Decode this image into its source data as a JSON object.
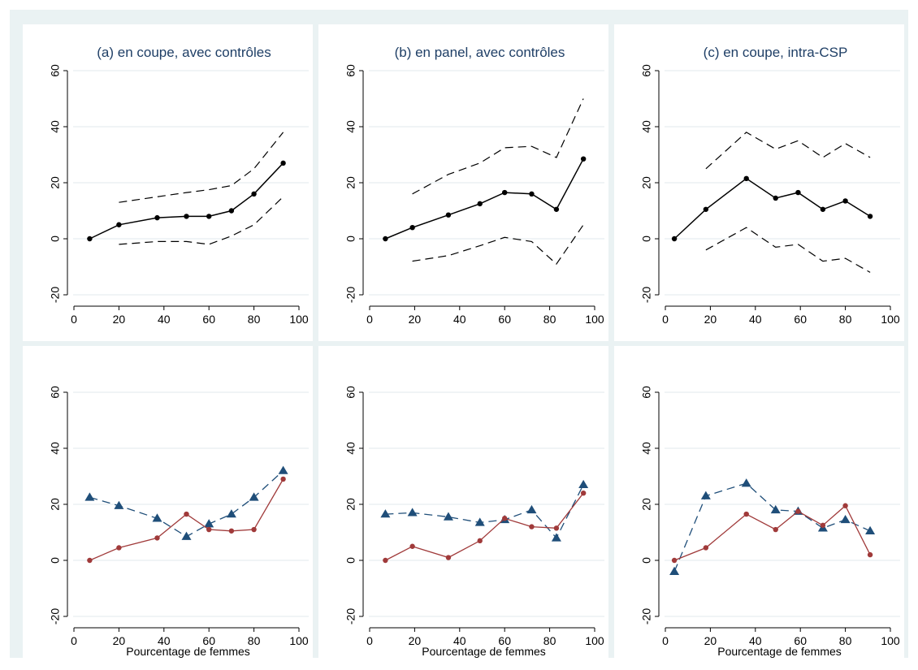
{
  "colors": {
    "outer_background": "#eaf2f3",
    "panel_background": "#ffffff",
    "gridline": "#e6eef0",
    "title_color": "#1f3f66",
    "estimate_line": "#000000",
    "ci_line": "#000000",
    "triangle_series": "#1f4e79",
    "circle_series": "#a03a3a"
  },
  "chart_data": [
    {
      "type": "line",
      "title": "(a) en coupe, avec contrôles",
      "xlabel": "",
      "xlim": [
        0,
        100
      ],
      "ylim": [
        -20,
        60
      ],
      "xticks": [
        "0",
        "20",
        "40",
        "60",
        "80",
        "100"
      ],
      "yticks": [
        "-20",
        "0",
        "20",
        "40",
        "60"
      ],
      "grid": true,
      "series": [
        {
          "role": "estimate",
          "markers": true,
          "x": [
            7,
            20,
            37,
            50,
            60,
            70,
            80,
            93
          ],
          "y": [
            0,
            5,
            7.5,
            8,
            8,
            10,
            16,
            27
          ]
        },
        {
          "role": "ci-upper",
          "markers": false,
          "x": [
            20,
            37,
            50,
            60,
            70,
            80,
            93
          ],
          "y": [
            13,
            15,
            16.5,
            17.5,
            19,
            25,
            38
          ]
        },
        {
          "role": "ci-lower",
          "markers": false,
          "x": [
            20,
            37,
            50,
            60,
            70,
            80,
            93
          ],
          "y": [
            -2,
            -1,
            -1,
            -2,
            1,
            5,
            15
          ]
        }
      ]
    },
    {
      "type": "line",
      "title": "(b) en panel, avec contrôles",
      "xlabel": "",
      "xlim": [
        0,
        100
      ],
      "ylim": [
        -20,
        60
      ],
      "xticks": [
        "0",
        "20",
        "40",
        "60",
        "80",
        "100"
      ],
      "yticks": [
        "-20",
        "0",
        "20",
        "40",
        "60"
      ],
      "grid": true,
      "series": [
        {
          "role": "estimate",
          "markers": true,
          "x": [
            7,
            19,
            35,
            49,
            60,
            72,
            83,
            95
          ],
          "y": [
            0,
            4,
            8.5,
            12.5,
            16.5,
            16,
            10.5,
            28.5
          ]
        },
        {
          "role": "ci-upper",
          "markers": false,
          "x": [
            19,
            35,
            49,
            60,
            72,
            83,
            95
          ],
          "y": [
            16,
            23,
            27,
            32.5,
            33,
            29,
            50
          ]
        },
        {
          "role": "ci-lower",
          "markers": false,
          "x": [
            19,
            35,
            49,
            60,
            72,
            83,
            95
          ],
          "y": [
            -8,
            -6,
            -2.5,
            0.5,
            -1,
            -9,
            5
          ]
        }
      ]
    },
    {
      "type": "line",
      "title": "(c) en coupe, intra-CSP",
      "xlabel": "",
      "xlim": [
        0,
        100
      ],
      "ylim": [
        -20,
        60
      ],
      "xticks": [
        "0",
        "20",
        "40",
        "60",
        "80",
        "100"
      ],
      "yticks": [
        "-20",
        "0",
        "20",
        "40",
        "60"
      ],
      "grid": true,
      "series": [
        {
          "role": "estimate",
          "markers": true,
          "x": [
            4,
            18,
            36,
            49,
            59,
            70,
            80,
            91
          ],
          "y": [
            0,
            10.5,
            21.5,
            14.5,
            16.5,
            10.5,
            13.5,
            8
          ]
        },
        {
          "role": "ci-upper",
          "markers": false,
          "x": [
            18,
            36,
            49,
            59,
            70,
            80,
            91
          ],
          "y": [
            25,
            38,
            32,
            35,
            29,
            34,
            29
          ]
        },
        {
          "role": "ci-lower",
          "markers": false,
          "x": [
            18,
            36,
            49,
            59,
            70,
            80,
            91
          ],
          "y": [
            -4,
            4,
            -3,
            -2,
            -8,
            -7,
            -12
          ]
        }
      ]
    },
    {
      "type": "line",
      "title": "",
      "xlabel": "Pourcentage de femmes",
      "xlim": [
        0,
        100
      ],
      "ylim": [
        -20,
        60
      ],
      "xticks": [
        "0",
        "20",
        "40",
        "60",
        "80",
        "100"
      ],
      "yticks": [
        "-20",
        "0",
        "20",
        "40",
        "60"
      ],
      "grid": true,
      "series": [
        {
          "role": "triangle-series",
          "marker": "triangle",
          "dash": true,
          "x": [
            7,
            20,
            37,
            50,
            60,
            70,
            80,
            93
          ],
          "y": [
            22.5,
            19.5,
            15,
            8.5,
            13,
            16.5,
            22.5,
            32
          ]
        },
        {
          "role": "circle-series",
          "marker": "circle",
          "dash": false,
          "x": [
            7,
            20,
            37,
            50,
            60,
            70,
            80,
            93
          ],
          "y": [
            0,
            4.5,
            8,
            16.5,
            11,
            10.5,
            11,
            29
          ]
        }
      ]
    },
    {
      "type": "line",
      "title": "",
      "xlabel": "Pourcentage de femmes",
      "xlim": [
        0,
        100
      ],
      "ylim": [
        -20,
        60
      ],
      "xticks": [
        "0",
        "20",
        "40",
        "60",
        "80",
        "100"
      ],
      "yticks": [
        "-20",
        "0",
        "20",
        "40",
        "60"
      ],
      "grid": true,
      "series": [
        {
          "role": "triangle-series",
          "marker": "triangle",
          "dash": true,
          "x": [
            7,
            19,
            35,
            49,
            60,
            72,
            83,
            95
          ],
          "y": [
            16.5,
            17,
            15.5,
            13.5,
            14.5,
            18,
            8,
            27
          ]
        },
        {
          "role": "circle-series",
          "marker": "circle",
          "dash": false,
          "x": [
            7,
            19,
            35,
            49,
            60,
            72,
            83,
            95
          ],
          "y": [
            0,
            5,
            1,
            7,
            15,
            12,
            11.5,
            24
          ]
        }
      ]
    },
    {
      "type": "line",
      "title": "",
      "xlabel": "Pourcentage de femmes",
      "xlim": [
        0,
        100
      ],
      "ylim": [
        -20,
        60
      ],
      "xticks": [
        "0",
        "20",
        "40",
        "60",
        "80",
        "100"
      ],
      "yticks": [
        "-20",
        "0",
        "20",
        "40",
        "60"
      ],
      "grid": true,
      "series": [
        {
          "role": "triangle-series",
          "marker": "triangle",
          "dash": true,
          "x": [
            4,
            18,
            36,
            49,
            59,
            70,
            80,
            91
          ],
          "y": [
            -4,
            23,
            27.5,
            18,
            17.5,
            11.5,
            14.5,
            10.5
          ]
        },
        {
          "role": "circle-series",
          "marker": "circle",
          "dash": false,
          "x": [
            4,
            18,
            36,
            49,
            59,
            70,
            80,
            91
          ],
          "y": [
            0,
            4.5,
            16.5,
            11,
            17.5,
            12.5,
            19.5,
            2
          ]
        }
      ]
    }
  ]
}
